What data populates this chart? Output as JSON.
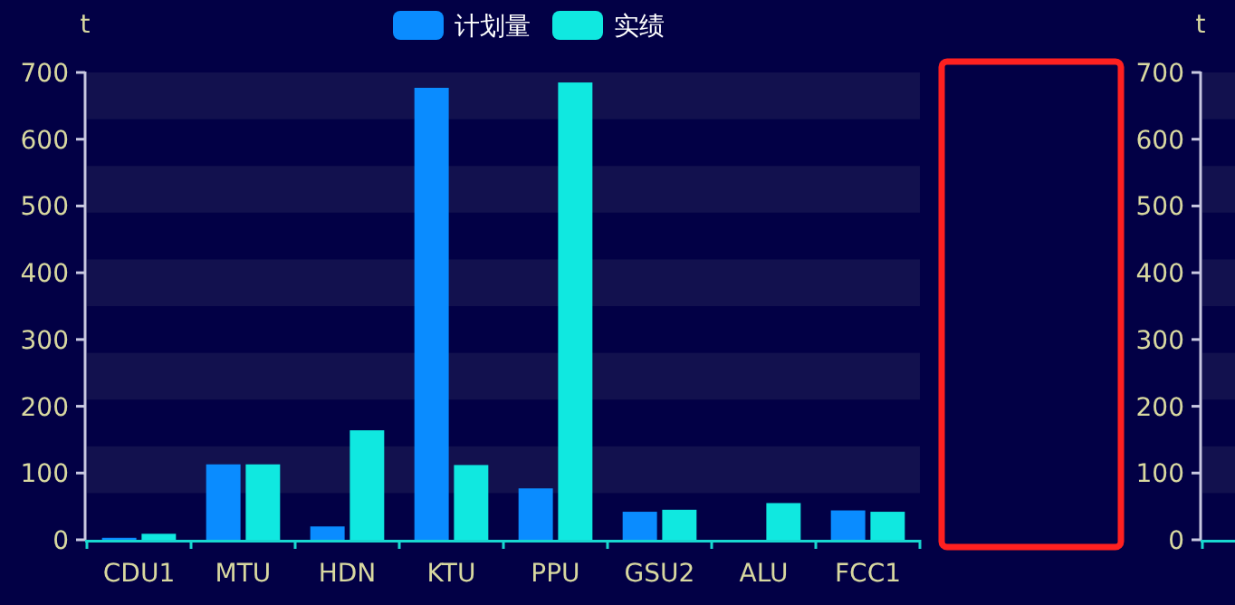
{
  "chart_data": [
    {
      "type": "bar",
      "ylabel": "t",
      "categories": [
        "CDU1",
        "MTU",
        "HDN",
        "KTU",
        "PPU",
        "GSU2",
        "ALU",
        "FCC1"
      ],
      "series": [
        {
          "name": "计划量",
          "color": "#0a8cff",
          "values": [
            3,
            113,
            20,
            677,
            77,
            42,
            0,
            44
          ]
        },
        {
          "name": "实绩",
          "color": "#10e8e0",
          "values": [
            9,
            113,
            164,
            112,
            685,
            45,
            55,
            42
          ]
        }
      ],
      "ylim": [
        0,
        700
      ],
      "yticks": [
        0,
        100,
        200,
        300,
        400,
        500,
        600,
        700
      ],
      "legend": "top",
      "bands": [
        {
          "axis": "y",
          "from": 70,
          "to": 140,
          "color": "#12114e"
        },
        {
          "axis": "y",
          "from": 210,
          "to": 280,
          "color": "#12114e"
        },
        {
          "axis": "y",
          "from": 350,
          "to": 420,
          "color": "#12114e"
        },
        {
          "axis": "y",
          "from": 490,
          "to": 560,
          "color": "#12114e"
        },
        {
          "axis": "y",
          "from": 630,
          "to": 700,
          "color": "#12114e"
        }
      ]
    },
    {
      "type": "bar",
      "ylabel": "t",
      "categories": [
        null
      ],
      "series": [
        {
          "color": "#0a8cff",
          "values": [
            3
          ]
        }
      ],
      "ylim": [
        0,
        700
      ],
      "yticks": [
        0,
        100,
        200,
        300,
        400,
        500,
        600,
        700
      ],
      "bands": [
        {
          "axis": "y",
          "from": 70,
          "to": 140,
          "color": "#12114e"
        },
        {
          "axis": "y",
          "from": 210,
          "to": 280,
          "color": "#12114e"
        },
        {
          "axis": "y",
          "from": 350,
          "to": 420,
          "color": "#12114e"
        },
        {
          "axis": "y",
          "from": 490,
          "to": 560,
          "color": "#12114e"
        },
        {
          "axis": "y",
          "from": 630,
          "to": 700,
          "color": "#12114e"
        }
      ]
    }
  ]
}
